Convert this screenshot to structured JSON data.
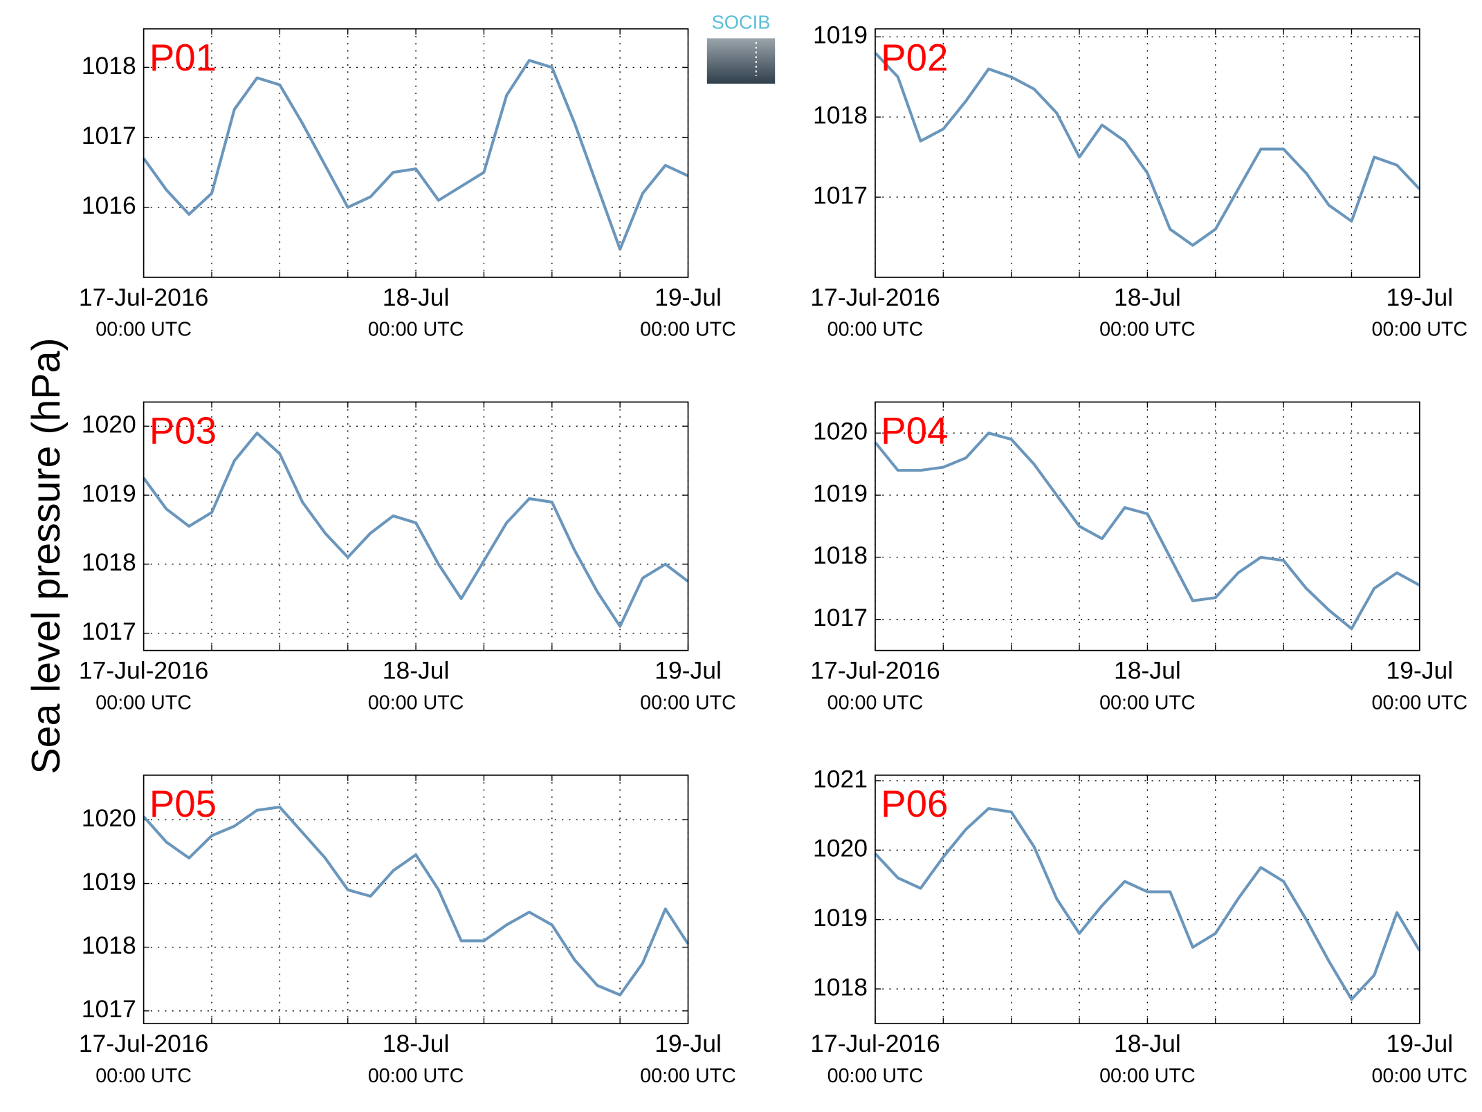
{
  "shared": {
    "ylabel": "Sea level pressure (hPa)",
    "logo": "SOCIB"
  },
  "chart_data": [
    {
      "type": "line",
      "title": "P01",
      "color": "#6a96bc",
      "grid": true,
      "x": [
        "2016-07-17T00:00Z",
        "2016-07-17T02:00Z",
        "2016-07-17T04:00Z",
        "2016-07-17T06:00Z",
        "2016-07-17T08:00Z",
        "2016-07-17T10:00Z",
        "2016-07-17T12:00Z",
        "2016-07-17T14:00Z",
        "2016-07-17T16:00Z",
        "2016-07-17T18:00Z",
        "2016-07-17T20:00Z",
        "2016-07-17T22:00Z",
        "2016-07-18T00:00Z",
        "2016-07-18T02:00Z",
        "2016-07-18T04:00Z",
        "2016-07-18T06:00Z",
        "2016-07-18T08:00Z",
        "2016-07-18T10:00Z",
        "2016-07-18T12:00Z",
        "2016-07-18T14:00Z",
        "2016-07-18T16:00Z",
        "2016-07-18T18:00Z",
        "2016-07-18T20:00Z",
        "2016-07-18T22:00Z",
        "2016-07-19T00:00Z"
      ],
      "values": [
        1016.7,
        1016.25,
        1015.9,
        1016.2,
        1017.4,
        1017.85,
        1017.75,
        1017.2,
        1016.6,
        1016.0,
        1016.15,
        1016.5,
        1016.55,
        1016.1,
        1016.3,
        1016.5,
        1017.6,
        1018.1,
        1018.0,
        1017.2,
        1016.3,
        1015.4,
        1016.2,
        1016.6,
        1016.45
      ],
      "xlim": [
        "2016-07-17T00:00Z",
        "2016-07-19T00:00Z"
      ],
      "xticks": [
        {
          "value": "2016-07-17T00:00Z",
          "label": [
            "17-Jul-2016",
            "00:00 UTC"
          ]
        },
        {
          "value": "2016-07-17T06:00Z",
          "label": null
        },
        {
          "value": "2016-07-17T12:00Z",
          "label": null
        },
        {
          "value": "2016-07-17T18:00Z",
          "label": null
        },
        {
          "value": "2016-07-18T00:00Z",
          "label": [
            "18-Jul",
            "00:00 UTC"
          ]
        },
        {
          "value": "2016-07-18T06:00Z",
          "label": null
        },
        {
          "value": "2016-07-18T12:00Z",
          "label": null
        },
        {
          "value": "2016-07-18T18:00Z",
          "label": null
        },
        {
          "value": "2016-07-19T00:00Z",
          "label": [
            "19-Jul",
            "00:00 UTC"
          ]
        }
      ],
      "ylim": [
        1015,
        1018.55
      ],
      "yticks": [
        1016,
        1017,
        1018
      ]
    },
    {
      "type": "line",
      "title": "P02",
      "color": "#6a96bc",
      "grid": true,
      "x": [
        "2016-07-17T00:00Z",
        "2016-07-17T02:00Z",
        "2016-07-17T04:00Z",
        "2016-07-17T06:00Z",
        "2016-07-17T08:00Z",
        "2016-07-17T10:00Z",
        "2016-07-17T12:00Z",
        "2016-07-17T14:00Z",
        "2016-07-17T16:00Z",
        "2016-07-17T18:00Z",
        "2016-07-17T20:00Z",
        "2016-07-17T22:00Z",
        "2016-07-18T00:00Z",
        "2016-07-18T02:00Z",
        "2016-07-18T04:00Z",
        "2016-07-18T06:00Z",
        "2016-07-18T08:00Z",
        "2016-07-18T10:00Z",
        "2016-07-18T12:00Z",
        "2016-07-18T14:00Z",
        "2016-07-18T16:00Z",
        "2016-07-18T18:00Z",
        "2016-07-18T20:00Z",
        "2016-07-18T22:00Z",
        "2016-07-19T00:00Z"
      ],
      "values": [
        1018.8,
        1018.5,
        1017.7,
        1017.85,
        1018.2,
        1018.6,
        1018.5,
        1018.35,
        1018.05,
        1017.5,
        1017.9,
        1017.7,
        1017.3,
        1016.6,
        1016.4,
        1016.6,
        1017.1,
        1017.6,
        1017.6,
        1017.3,
        1016.9,
        1016.7,
        1017.5,
        1017.4,
        1017.1
      ],
      "xlim": [
        "2016-07-17T00:00Z",
        "2016-07-19T00:00Z"
      ],
      "xticks": [
        {
          "value": "2016-07-17T00:00Z",
          "label": [
            "17-Jul-2016",
            "00:00 UTC"
          ]
        },
        {
          "value": "2016-07-17T06:00Z",
          "label": null
        },
        {
          "value": "2016-07-17T12:00Z",
          "label": null
        },
        {
          "value": "2016-07-17T18:00Z",
          "label": null
        },
        {
          "value": "2016-07-18T00:00Z",
          "label": [
            "18-Jul",
            "00:00 UTC"
          ]
        },
        {
          "value": "2016-07-18T06:00Z",
          "label": null
        },
        {
          "value": "2016-07-18T12:00Z",
          "label": null
        },
        {
          "value": "2016-07-18T18:00Z",
          "label": null
        },
        {
          "value": "2016-07-19T00:00Z",
          "label": [
            "19-Jul",
            "00:00 UTC"
          ]
        }
      ],
      "ylim": [
        1016,
        1019.1
      ],
      "yticks": [
        1017,
        1018,
        1019
      ]
    },
    {
      "type": "line",
      "title": "P03",
      "color": "#6a96bc",
      "grid": true,
      "x": [
        "2016-07-17T00:00Z",
        "2016-07-17T02:00Z",
        "2016-07-17T04:00Z",
        "2016-07-17T06:00Z",
        "2016-07-17T08:00Z",
        "2016-07-17T10:00Z",
        "2016-07-17T12:00Z",
        "2016-07-17T14:00Z",
        "2016-07-17T16:00Z",
        "2016-07-17T18:00Z",
        "2016-07-17T20:00Z",
        "2016-07-17T22:00Z",
        "2016-07-18T00:00Z",
        "2016-07-18T02:00Z",
        "2016-07-18T04:00Z",
        "2016-07-18T06:00Z",
        "2016-07-18T08:00Z",
        "2016-07-18T10:00Z",
        "2016-07-18T12:00Z",
        "2016-07-18T14:00Z",
        "2016-07-18T16:00Z",
        "2016-07-18T18:00Z",
        "2016-07-18T20:00Z",
        "2016-07-18T22:00Z",
        "2016-07-19T00:00Z"
      ],
      "values": [
        1019.25,
        1018.8,
        1018.55,
        1018.75,
        1019.5,
        1019.9,
        1019.6,
        1018.9,
        1018.45,
        1018.1,
        1018.45,
        1018.7,
        1018.6,
        1018.0,
        1017.5,
        1018.05,
        1018.6,
        1018.95,
        1018.9,
        1018.2,
        1017.6,
        1017.1,
        1017.8,
        1018.0,
        1017.75
      ],
      "xlim": [
        "2016-07-17T00:00Z",
        "2016-07-19T00:00Z"
      ],
      "xticks": [
        {
          "value": "2016-07-17T00:00Z",
          "label": [
            "17-Jul-2016",
            "00:00 UTC"
          ]
        },
        {
          "value": "2016-07-17T06:00Z",
          "label": null
        },
        {
          "value": "2016-07-17T12:00Z",
          "label": null
        },
        {
          "value": "2016-07-17T18:00Z",
          "label": null
        },
        {
          "value": "2016-07-18T00:00Z",
          "label": [
            "18-Jul",
            "00:00 UTC"
          ]
        },
        {
          "value": "2016-07-18T06:00Z",
          "label": null
        },
        {
          "value": "2016-07-18T12:00Z",
          "label": null
        },
        {
          "value": "2016-07-18T18:00Z",
          "label": null
        },
        {
          "value": "2016-07-19T00:00Z",
          "label": [
            "19-Jul",
            "00:00 UTC"
          ]
        }
      ],
      "ylim": [
        1016.75,
        1020.35
      ],
      "yticks": [
        1017,
        1018,
        1019,
        1020
      ]
    },
    {
      "type": "line",
      "title": "P04",
      "color": "#6a96bc",
      "grid": true,
      "x": [
        "2016-07-17T00:00Z",
        "2016-07-17T02:00Z",
        "2016-07-17T04:00Z",
        "2016-07-17T06:00Z",
        "2016-07-17T08:00Z",
        "2016-07-17T10:00Z",
        "2016-07-17T12:00Z",
        "2016-07-17T14:00Z",
        "2016-07-17T16:00Z",
        "2016-07-17T18:00Z",
        "2016-07-17T20:00Z",
        "2016-07-17T22:00Z",
        "2016-07-18T00:00Z",
        "2016-07-18T02:00Z",
        "2016-07-18T04:00Z",
        "2016-07-18T06:00Z",
        "2016-07-18T08:00Z",
        "2016-07-18T10:00Z",
        "2016-07-18T12:00Z",
        "2016-07-18T14:00Z",
        "2016-07-18T16:00Z",
        "2016-07-18T18:00Z",
        "2016-07-18T20:00Z",
        "2016-07-18T22:00Z",
        "2016-07-19T00:00Z"
      ],
      "values": [
        1019.85,
        1019.4,
        1019.4,
        1019.45,
        1019.6,
        1020.0,
        1019.9,
        1019.5,
        1019.0,
        1018.5,
        1018.3,
        1018.8,
        1018.7,
        1018.0,
        1017.3,
        1017.35,
        1017.75,
        1018.0,
        1017.95,
        1017.5,
        1017.15,
        1016.85,
        1017.5,
        1017.75,
        1017.55
      ],
      "xlim": [
        "2016-07-17T00:00Z",
        "2016-07-19T00:00Z"
      ],
      "xticks": [
        {
          "value": "2016-07-17T00:00Z",
          "label": [
            "17-Jul-2016",
            "00:00 UTC"
          ]
        },
        {
          "value": "2016-07-17T06:00Z",
          "label": null
        },
        {
          "value": "2016-07-17T12:00Z",
          "label": null
        },
        {
          "value": "2016-07-17T18:00Z",
          "label": null
        },
        {
          "value": "2016-07-18T00:00Z",
          "label": [
            "18-Jul",
            "00:00 UTC"
          ]
        },
        {
          "value": "2016-07-18T06:00Z",
          "label": null
        },
        {
          "value": "2016-07-18T12:00Z",
          "label": null
        },
        {
          "value": "2016-07-18T18:00Z",
          "label": null
        },
        {
          "value": "2016-07-19T00:00Z",
          "label": [
            "19-Jul",
            "00:00 UTC"
          ]
        }
      ],
      "ylim": [
        1016.5,
        1020.5
      ],
      "yticks": [
        1017,
        1018,
        1019,
        1020
      ]
    },
    {
      "type": "line",
      "title": "P05",
      "color": "#6a96bc",
      "grid": true,
      "x": [
        "2016-07-17T00:00Z",
        "2016-07-17T02:00Z",
        "2016-07-17T04:00Z",
        "2016-07-17T06:00Z",
        "2016-07-17T08:00Z",
        "2016-07-17T10:00Z",
        "2016-07-17T12:00Z",
        "2016-07-17T14:00Z",
        "2016-07-17T16:00Z",
        "2016-07-17T18:00Z",
        "2016-07-17T20:00Z",
        "2016-07-17T22:00Z",
        "2016-07-18T00:00Z",
        "2016-07-18T02:00Z",
        "2016-07-18T04:00Z",
        "2016-07-18T06:00Z",
        "2016-07-18T08:00Z",
        "2016-07-18T10:00Z",
        "2016-07-18T12:00Z",
        "2016-07-18T14:00Z",
        "2016-07-18T16:00Z",
        "2016-07-18T18:00Z",
        "2016-07-18T20:00Z",
        "2016-07-18T22:00Z",
        "2016-07-19T00:00Z"
      ],
      "values": [
        1020.05,
        1019.65,
        1019.4,
        1019.75,
        1019.9,
        1020.15,
        1020.2,
        1019.8,
        1019.4,
        1018.9,
        1018.8,
        1019.2,
        1019.45,
        1018.9,
        1018.1,
        1018.1,
        1018.35,
        1018.55,
        1018.35,
        1017.8,
        1017.4,
        1017.25,
        1017.75,
        1018.6,
        1018.05
      ],
      "xlim": [
        "2016-07-17T00:00Z",
        "2016-07-19T00:00Z"
      ],
      "xticks": [
        {
          "value": "2016-07-17T00:00Z",
          "label": [
            "17-Jul-2016",
            "00:00 UTC"
          ]
        },
        {
          "value": "2016-07-17T06:00Z",
          "label": null
        },
        {
          "value": "2016-07-17T12:00Z",
          "label": null
        },
        {
          "value": "2016-07-17T18:00Z",
          "label": null
        },
        {
          "value": "2016-07-18T00:00Z",
          "label": [
            "18-Jul",
            "00:00 UTC"
          ]
        },
        {
          "value": "2016-07-18T06:00Z",
          "label": null
        },
        {
          "value": "2016-07-18T12:00Z",
          "label": null
        },
        {
          "value": "2016-07-18T18:00Z",
          "label": null
        },
        {
          "value": "2016-07-19T00:00Z",
          "label": [
            "19-Jul",
            "00:00 UTC"
          ]
        }
      ],
      "ylim": [
        1016.8,
        1020.7
      ],
      "yticks": [
        1017,
        1018,
        1019,
        1020
      ]
    },
    {
      "type": "line",
      "title": "P06",
      "color": "#6a96bc",
      "grid": true,
      "x": [
        "2016-07-17T00:00Z",
        "2016-07-17T02:00Z",
        "2016-07-17T04:00Z",
        "2016-07-17T06:00Z",
        "2016-07-17T08:00Z",
        "2016-07-17T10:00Z",
        "2016-07-17T12:00Z",
        "2016-07-17T14:00Z",
        "2016-07-17T16:00Z",
        "2016-07-17T18:00Z",
        "2016-07-17T20:00Z",
        "2016-07-17T22:00Z",
        "2016-07-18T00:00Z",
        "2016-07-18T02:00Z",
        "2016-07-18T04:00Z",
        "2016-07-18T06:00Z",
        "2016-07-18T08:00Z",
        "2016-07-18T10:00Z",
        "2016-07-18T12:00Z",
        "2016-07-18T14:00Z",
        "2016-07-18T16:00Z",
        "2016-07-18T18:00Z",
        "2016-07-18T20:00Z",
        "2016-07-18T22:00Z",
        "2016-07-19T00:00Z"
      ],
      "values": [
        1019.95,
        1019.6,
        1019.45,
        1019.9,
        1020.3,
        1020.6,
        1020.55,
        1020.05,
        1019.3,
        1018.8,
        1019.2,
        1019.55,
        1019.4,
        1019.4,
        1018.6,
        1018.8,
        1019.3,
        1019.75,
        1019.55,
        1019.0,
        1018.4,
        1017.85,
        1018.2,
        1019.1,
        1018.55
      ],
      "xlim": [
        "2016-07-17T00:00Z",
        "2016-07-19T00:00Z"
      ],
      "xticks": [
        {
          "value": "2016-07-17T00:00Z",
          "label": [
            "17-Jul-2016",
            "00:00 UTC"
          ]
        },
        {
          "value": "2016-07-17T06:00Z",
          "label": null
        },
        {
          "value": "2016-07-17T12:00Z",
          "label": null
        },
        {
          "value": "2016-07-17T18:00Z",
          "label": null
        },
        {
          "value": "2016-07-18T00:00Z",
          "label": [
            "18-Jul",
            "00:00 UTC"
          ]
        },
        {
          "value": "2016-07-18T06:00Z",
          "label": null
        },
        {
          "value": "2016-07-18T12:00Z",
          "label": null
        },
        {
          "value": "2016-07-18T18:00Z",
          "label": null
        },
        {
          "value": "2016-07-19T00:00Z",
          "label": [
            "19-Jul",
            "00:00 UTC"
          ]
        }
      ],
      "ylim": [
        1017.5,
        1021.08
      ],
      "yticks": [
        1018,
        1019,
        1020,
        1021
      ]
    }
  ]
}
